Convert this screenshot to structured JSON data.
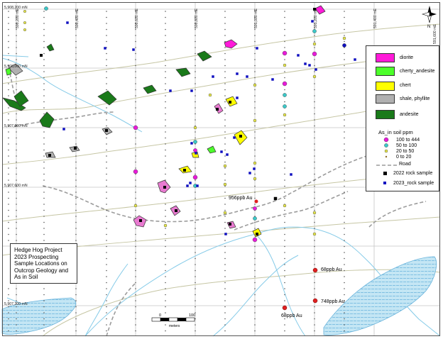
{
  "grid_labels": {
    "northings": [
      "5,908,200 mN",
      "5,908,000 mN",
      "5,907,800 mN",
      "5,907,600 mN",
      "5,907,200 mN"
    ],
    "eastings": [
      "590,200 mE",
      "590,400 mE",
      "590,600 mE",
      "590,800 mE",
      "591,000 mE",
      "591,200 mE",
      "591,400 mE",
      "591,600 mE"
    ]
  },
  "annotations": [
    "956ppb Au",
    "68ppb Au",
    "748ppb Au",
    "68ppb Au"
  ],
  "legend": {
    "geology": [
      {
        "label": "diorite",
        "color": "#ff1ad9"
      },
      {
        "label": "cherty_andesite",
        "color": "#4cff2a"
      },
      {
        "label": "chert",
        "color": "#ffff00"
      },
      {
        "label": "shale, phyllite",
        "color": "#b0b0b0"
      },
      {
        "label": "andesite",
        "color": "#1a7a1a"
      }
    ],
    "soil_title": "As_in soil ppm",
    "soil_classes": [
      {
        "label": "100  to  444",
        "color": "#e81ad9"
      },
      {
        "label": "50  to  100",
        "color": "#3cc8c8"
      },
      {
        "label": "20  to  50",
        "color": "#e8e84a"
      },
      {
        "label": "0  to  20",
        "color": "#8a6a2a"
      }
    ],
    "road_label": "Road",
    "rock_2022_label": "2022 rock sample",
    "rock_2023_label": "2023_rock sample"
  },
  "title_box": {
    "lines": [
      "Hedge Hog Project",
      "2023 Prospecting",
      "Sample Locations on",
      "Outcrop Geology and",
      "As in Soil"
    ]
  },
  "scale_bar": {
    "start": "0",
    "end": "100",
    "unit": "meters"
  },
  "north_label": "N",
  "colors": {
    "stream": "#7ec8e8",
    "contour": "#c8c8a8",
    "road": "#a0a0a0",
    "grid": "#c0c0c0",
    "rock_2022": "#000000",
    "rock_2023": "#1010c0",
    "au_point": "#e02020"
  }
}
